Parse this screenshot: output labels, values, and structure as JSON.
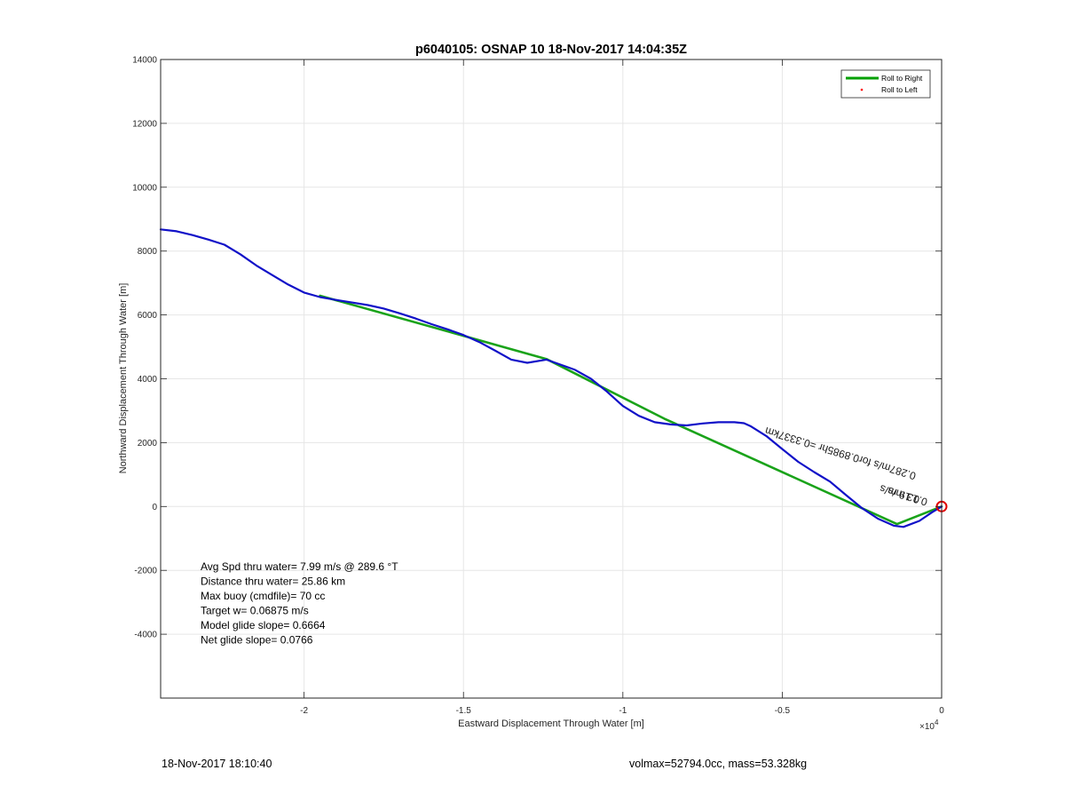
{
  "chart_data": {
    "type": "line",
    "title": "p6040105: OSNAP 10 18-Nov-2017 14:04:35Z",
    "xlabel": "Eastward Displacement Through Water [m]",
    "ylabel": "Northward Displacement Through Water [m]",
    "x_exponent_label": "×10",
    "x_exponent_power": "4",
    "xlim": [
      -24500,
      0
    ],
    "ylim": [
      -6000,
      14000
    ],
    "x_ticks": [
      -20000,
      -15000,
      -10000,
      -5000,
      0
    ],
    "x_tick_labels": [
      "-2",
      "-1.5",
      "-1",
      "-0.5",
      "0"
    ],
    "y_ticks": [
      -4000,
      -2000,
      0,
      2000,
      4000,
      6000,
      8000,
      10000,
      12000,
      14000
    ],
    "y_tick_labels": [
      "-4000",
      "-2000",
      "0",
      "2000",
      "4000",
      "6000",
      "8000",
      "10000",
      "12000",
      "14000"
    ],
    "grid": true,
    "legend_position": "top-right",
    "legend": [
      {
        "label": "Roll to Right",
        "color": "#00a000",
        "style": "line"
      },
      {
        "label": "Roll to Left",
        "color": "#ff0000",
        "style": "dot"
      }
    ],
    "series": [
      {
        "name": "Roll to Right",
        "color": "#1aa31a",
        "points": [
          [
            -19500,
            6600
          ],
          [
            -12400,
            4620
          ],
          [
            -8700,
            2750
          ],
          [
            -1400,
            -550
          ],
          [
            0,
            0
          ]
        ]
      },
      {
        "color": "#1111c8",
        "points": [
          [
            -24500,
            8680
          ],
          [
            -24000,
            8620
          ],
          [
            -23500,
            8500
          ],
          [
            -23000,
            8360
          ],
          [
            -22500,
            8200
          ],
          [
            -22000,
            7900
          ],
          [
            -21500,
            7550
          ],
          [
            -21000,
            7250
          ],
          [
            -20500,
            6950
          ],
          [
            -20000,
            6700
          ],
          [
            -19500,
            6560
          ],
          [
            -19000,
            6470
          ],
          [
            -18500,
            6390
          ],
          [
            -18000,
            6310
          ],
          [
            -17500,
            6200
          ],
          [
            -17000,
            6050
          ],
          [
            -16500,
            5890
          ],
          [
            -16000,
            5710
          ],
          [
            -15500,
            5550
          ],
          [
            -15000,
            5370
          ],
          [
            -14500,
            5150
          ],
          [
            -14000,
            4880
          ],
          [
            -13500,
            4600
          ],
          [
            -13000,
            4500
          ],
          [
            -12400,
            4600
          ],
          [
            -12000,
            4460
          ],
          [
            -11500,
            4280
          ],
          [
            -11000,
            4000
          ],
          [
            -10500,
            3600
          ],
          [
            -10000,
            3150
          ],
          [
            -9500,
            2840
          ],
          [
            -9000,
            2640
          ],
          [
            -8500,
            2570
          ],
          [
            -8000,
            2540
          ],
          [
            -7500,
            2600
          ],
          [
            -7000,
            2640
          ],
          [
            -6500,
            2640
          ],
          [
            -6200,
            2610
          ],
          [
            -6000,
            2520
          ],
          [
            -5500,
            2210
          ],
          [
            -5000,
            1800
          ],
          [
            -4500,
            1400
          ],
          [
            -4000,
            1080
          ],
          [
            -3500,
            780
          ],
          [
            -3000,
            360
          ],
          [
            -2500,
            -50
          ],
          [
            -2000,
            -380
          ],
          [
            -1500,
            -600
          ],
          [
            -1200,
            -640
          ],
          [
            -700,
            -450
          ],
          [
            -300,
            -180
          ],
          [
            0,
            0
          ]
        ]
      }
    ],
    "markers": [
      {
        "label": "current position",
        "x": 0,
        "y": 0,
        "color": "#e00000"
      }
    ],
    "annotations": [
      {
        "text": "0.287m/s for0.8985hr =0.3337km",
        "anchor_x": -5500,
        "anchor_y": 2490,
        "rotation_deg": 17
      },
      {
        "text": "0.19 m/s",
        "anchor_x": -1900,
        "anchor_y": 680,
        "rotation_deg": 17
      },
      {
        "text": "0.13 m/s",
        "anchor_x": -1650,
        "anchor_y": 610,
        "rotation_deg": 17
      }
    ],
    "stats_text": [
      "Avg Spd thru water=  7.99 m/s @ 289.6 °T",
      "Distance thru water= 25.86 km",
      "Max buoy (cmdfile)= 70 cc",
      "Target w= 0.06875 m/s",
      "Model glide slope= 0.6664",
      "Net glide slope= 0.0766"
    ]
  },
  "footer": {
    "timestamp": "18-Nov-2017 18:10:40",
    "vol_mass": "volmax=52794.0cc, mass=53.328kg"
  }
}
